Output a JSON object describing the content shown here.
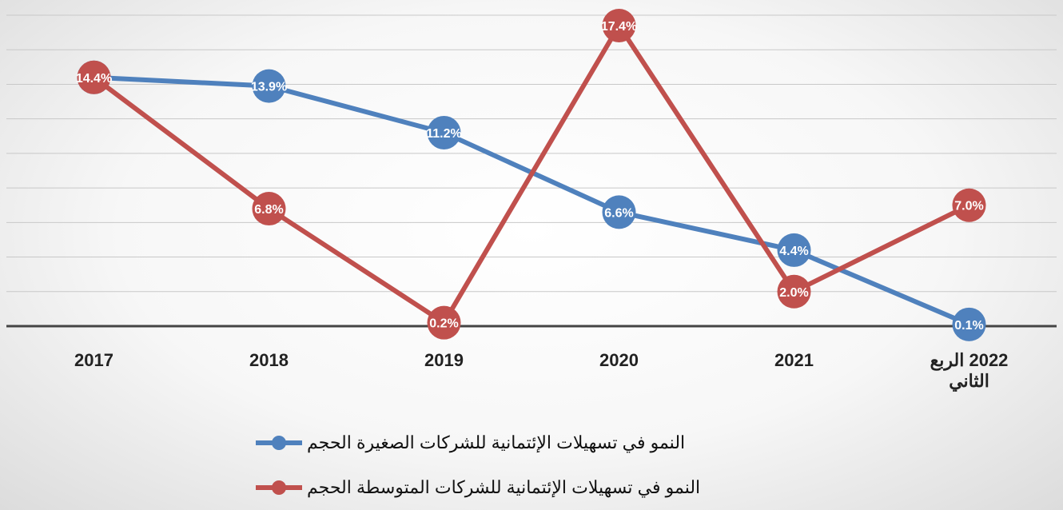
{
  "chart_data": {
    "type": "line",
    "categories": [
      "2017",
      "2018",
      "2019",
      "2020",
      "2021",
      "2022 الربع الثاني"
    ],
    "series": [
      {
        "name": "النمو في تسهيلات الإئتمانية للشركات الصغيرة الحجم",
        "color": "#4f81bd",
        "values": [
          14.4,
          13.9,
          11.2,
          6.6,
          4.4,
          0.1
        ],
        "value_labels": [
          "14.4%",
          "13.9%",
          "11.2%",
          "6.6%",
          "4.4%",
          "0.1%"
        ]
      },
      {
        "name": "النمو في تسهيلات الإئتمانية للشركات المتوسطة الحجم",
        "color": "#c0504d",
        "values": [
          14.4,
          6.8,
          0.2,
          17.4,
          2.0,
          7.0
        ],
        "value_labels": [
          "14.4%",
          "6.8%",
          "0.2%",
          "17.4%",
          "2.0%",
          "7.0%"
        ]
      }
    ],
    "ylim": [
      0,
      18
    ],
    "yticks": [
      0,
      2,
      4,
      6,
      8,
      10,
      12,
      14,
      16,
      18
    ],
    "grid": true
  }
}
